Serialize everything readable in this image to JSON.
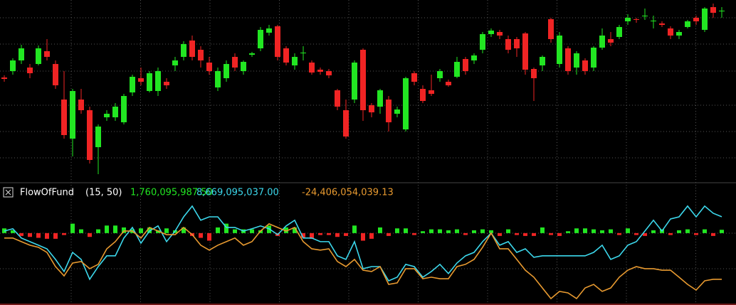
{
  "chart_data": [
    {
      "type": "candlestick",
      "ylim": [
        0,
        250
      ],
      "up_color": "#22e622",
      "down_color": "#f02424",
      "open": [
        141,
        150,
        165,
        155,
        160,
        178,
        160,
        110,
        55,
        110,
        95,
        43,
        85,
        85,
        78,
        120,
        140,
        122,
        122,
        135,
        158,
        170,
        193,
        180,
        162,
        127,
        140,
        170,
        150,
        173,
        182,
        204,
        213,
        182,
        158,
        175,
        162,
        152,
        150,
        123,
        95,
        110,
        180,
        102,
        100,
        110,
        90,
        68,
        147,
        125,
        123,
        140,
        135,
        142,
        167,
        165,
        180,
        202,
        205,
        195,
        195,
        203,
        153,
        158,
        223,
        160,
        182,
        155,
        165,
        155,
        183,
        195,
        198,
        220,
        223,
        227,
        220,
        217,
        210,
        200,
        212,
        225,
        208,
        240,
        235
      ],
      "high": [
        144,
        168,
        187,
        160,
        186,
        195,
        165,
        150,
        125,
        125,
        100,
        75,
        95,
        105,
        118,
        145,
        155,
        150,
        155,
        140,
        170,
        192,
        200,
        185,
        170,
        155,
        165,
        175,
        165,
        177,
        212,
        215,
        215,
        185,
        175,
        185,
        165,
        155,
        153,
        125,
        110,
        165,
        182,
        105,
        125,
        115,
        100,
        142,
        150,
        130,
        145,
        153,
        138,
        170,
        170,
        175,
        205,
        210,
        208,
        200,
        198,
        205,
        155,
        172,
        225,
        205,
        185,
        178,
        168,
        185,
        210,
        205,
        215,
        230,
        225,
        238,
        228,
        220,
        213,
        208,
        222,
        228,
        240,
        245,
        240
      ],
      "low": [
        135,
        145,
        160,
        140,
        158,
        165,
        125,
        55,
        30,
        90,
        20,
        5,
        80,
        80,
        75,
        115,
        130,
        120,
        115,
        125,
        150,
        165,
        165,
        155,
        145,
        122,
        135,
        150,
        145,
        170,
        178,
        200,
        165,
        158,
        152,
        165,
        145,
        145,
        140,
        95,
        55,
        105,
        80,
        85,
        90,
        65,
        85,
        65,
        130,
        105,
        115,
        135,
        128,
        140,
        145,
        160,
        175,
        198,
        195,
        175,
        170,
        145,
        108,
        150,
        190,
        155,
        145,
        145,
        145,
        150,
        180,
        185,
        195,
        215,
        218,
        222,
        210,
        212,
        195,
        195,
        210,
        215,
        205,
        225,
        225
      ],
      "close": [
        139,
        165,
        182,
        147,
        182,
        170,
        130,
        60,
        122,
        95,
        25,
        72,
        90,
        100,
        115,
        142,
        135,
        147,
        150,
        130,
        165,
        188,
        170,
        165,
        150,
        150,
        160,
        155,
        163,
        175,
        208,
        210,
        170,
        162,
        170,
        176,
        148,
        149,
        144,
        100,
        58,
        162,
        95,
        92,
        123,
        78,
        96,
        140,
        135,
        108,
        118,
        150,
        130,
        163,
        150,
        172,
        202,
        207,
        200,
        180,
        182,
        152,
        140,
        170,
        195,
        200,
        150,
        175,
        150,
        183,
        200,
        190,
        212,
        225,
        222,
        228,
        221,
        215,
        200,
        205,
        220,
        220,
        238,
        232,
        235
      ]
    },
    {
      "type": "indicator",
      "title": "FlowOfFund",
      "params": "(15,  50)",
      "ylim": [
        -38000000000.0,
        18000000000.0
      ],
      "series": [
        {
          "type": "bar",
          "color": "#22e622",
          "down_color": "#f02424",
          "label": "1,760,095,987.50",
          "values": [
            2500000000.0,
            1500000000.0,
            -1500000000.0,
            -2000000000.0,
            -2500000000.0,
            -3000000000.0,
            -3000000000.0,
            -1000000000.0,
            5000000000.0,
            2000000000.0,
            -2000000000.0,
            2000000000.0,
            4000000000.0,
            4000000000.0,
            3000000000.0,
            2000000000.0,
            2500000000.0,
            3000000000.0,
            1500000000.0,
            2500000000.0,
            1500000000.0,
            3000000000.0,
            -1500000000.0,
            -2500000000.0,
            -4000000000.0,
            3000000000.0,
            5000000000.0,
            2000000000.0,
            2000000000.0,
            2000000000.0,
            1500000000.0,
            4000000000.0,
            -1500000000.0,
            3000000000.0,
            3000000000.0,
            -2500000000.0,
            -3000000000.0,
            -1000000000.0,
            -1000000000.0,
            -2000000000.0,
            -1500000000.0,
            4000000000.0,
            -4000000000.0,
            -3000000000.0,
            3000000000.0,
            -1500000000.0,
            2500000000.0,
            2500000000.0,
            -1000000000.0,
            1000000000.0,
            2000000000.0,
            2000000000.0,
            1500000000.0,
            2000000000.0,
            -1000000000.0,
            1500000000.0,
            2000000000.0,
            1500000000.0,
            -1500000000.0,
            2000000000.0,
            -1000000000.0,
            -1500000000.0,
            -1500000000.0,
            3000000000.0,
            -1000000000.0,
            -1500000000.0,
            1000000000.0,
            2500000000.0,
            2500000000.0,
            2000000000.0,
            1500000000.0,
            2000000000.0,
            -1000000000.0,
            2500000000.0,
            -1000000000.0,
            -1500000000.0,
            1500000000.0,
            2000000000.0,
            -1000000000.0,
            1500000000.0,
            2000000000.0,
            -1000000000.0,
            2000000000.0,
            -1500000000.0,
            1760095987.5
          ]
        },
        {
          "type": "line",
          "color": "#3cd8ec",
          "label": "8,669,095,037.00",
          "values": [
            1100000000.0,
            2300000000.0,
            -2600000000.0,
            -4500000000.0,
            -6400000000.0,
            -8300000000.0,
            -13900000000.0,
            -20300000000.0,
            -10200000000.0,
            -13900000000.0,
            -24400000000.0,
            -17700000000.0,
            -12000000000.0,
            -12000000000.0,
            -2600000000.0,
            3000000000.0,
            -5300000000.0,
            1100000000.0,
            3800000000.0,
            -4500000000.0,
            1100000000.0,
            8600000000.0,
            14300000000.0,
            6800000000.0,
            8600000000.0,
            8600000000.0,
            3000000000.0,
            3000000000.0,
            1100000000.0,
            2300000000.0,
            3800000000.0,
            2300000000.0,
            -800000000.0,
            3800000000.0,
            6800000000.0,
            -2600000000.0,
            -2600000000.0,
            -4500000000.0,
            -4500000000.0,
            -12000000000.0,
            -13900000000.0,
            -4500000000.0,
            -18800000000.0,
            -17700000000.0,
            -17700000000.0,
            -25200000000.0,
            -23300000000.0,
            -16500000000.0,
            -17700000000.0,
            -23300000000.0,
            -20300000000.0,
            -16500000000.0,
            -21400000000.0,
            -15800000000.0,
            -12000000000.0,
            -10200000000.0,
            -4500000000.0,
            0,
            -6400000000.0,
            -4500000000.0,
            -10200000000.0,
            -8300000000.0,
            -12800000000.0,
            -12000000000.0,
            -12000000000.0,
            -12000000000.0,
            -12000000000.0,
            -12000000000.0,
            -12000000000.0,
            -10200000000.0,
            -6400000000.0,
            -13900000000.0,
            -12000000000.0,
            -6400000000.0,
            -4500000000.0,
            1100000000.0,
            6800000000.0,
            1100000000.0,
            7500000000.0,
            8600000000.0,
            14300000000.0,
            8600000000.0,
            14300000000.0,
            10500000000.0,
            8669095037.0
          ]
        },
        {
          "type": "line",
          "color": "#e89a30",
          "label": "-24,406,054,039.13",
          "values": [
            -2600000000.0,
            -2600000000.0,
            -4500000000.0,
            -6400000000.0,
            -7500000000.0,
            -10200000000.0,
            -17700000000.0,
            -22600000000.0,
            -15800000000.0,
            -15000000000.0,
            -18800000000.0,
            -16500000000.0,
            -8300000000.0,
            -4500000000.0,
            1100000000.0,
            1100000000.0,
            -2600000000.0,
            3000000000.0,
            1100000000.0,
            -800000000.0,
            -800000000.0,
            3000000000.0,
            -800000000.0,
            -6400000000.0,
            -9000000000.0,
            -6400000000.0,
            -4500000000.0,
            -2600000000.0,
            -6400000000.0,
            -4500000000.0,
            1100000000.0,
            4900000000.0,
            3000000000.0,
            1100000000.0,
            3000000000.0,
            -4500000000.0,
            -8300000000.0,
            -9000000000.0,
            -8300000000.0,
            -15000000000.0,
            -17700000000.0,
            -13900000000.0,
            -19600000000.0,
            -20300000000.0,
            -17700000000.0,
            -27100000000.0,
            -26300000000.0,
            -18800000000.0,
            -18800000000.0,
            -24100000000.0,
            -23300000000.0,
            -24100000000.0,
            -24100000000.0,
            -17700000000.0,
            -16500000000.0,
            -13900000000.0,
            -7500000000.0,
            0,
            -8300000000.0,
            -8300000000.0,
            -13900000000.0,
            -19600000000.0,
            -23300000000.0,
            -29000000000.0,
            -34600000000.0,
            -30800000000.0,
            -31600000000.0,
            -34600000000.0,
            -29000000000.0,
            -27100000000.0,
            -30800000000.0,
            -29000000000.0,
            -23300000000.0,
            -19600000000.0,
            -17700000000.0,
            -18800000000.0,
            -18800000000.0,
            -19600000000.0,
            -19600000000.0,
            -23300000000.0,
            -27100000000.0,
            -30100000000.0,
            -25200000000.0,
            -24400000000.0,
            -24406054039.13
          ]
        }
      ]
    }
  ]
}
